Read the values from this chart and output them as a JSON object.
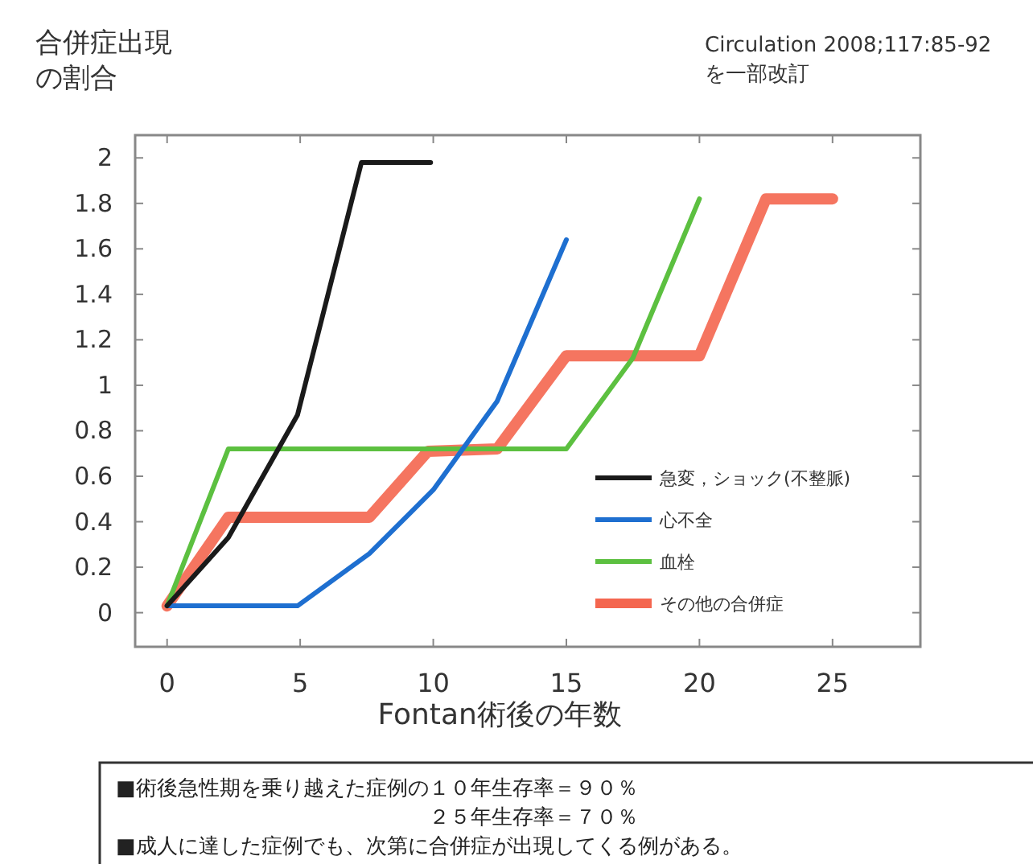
{
  "chart_data": {
    "type": "line",
    "ylabel": "合併症出現の割合",
    "xlabel": "Fontan術後の年数",
    "annotations": [
      "Circulation 2008;117:85-92\nを一部改訂",
      "■術後急性期を乗り越えた症例の１０年生存率＝９０％",
      "２５年生存率＝７０％",
      "■成人に達した症例でも、次第に合併症が出現してくる例がある。"
    ],
    "xlim": [
      -1.2,
      28.3
    ],
    "xticks": [
      0,
      5,
      10,
      15,
      20,
      25
    ],
    "ylim": [
      -0.15,
      2.1
    ],
    "yticks": [
      0,
      0.2,
      0.4,
      0.6,
      0.8,
      1,
      1.2,
      1.4,
      1.6,
      1.8,
      2
    ],
    "grid": false,
    "legend": "right",
    "marker": "none",
    "line_style": "solid",
    "series": [
      {
        "name": "その他の合併症",
        "color": "#f4664f",
        "x": [
          0,
          2.3,
          7.6,
          9.8,
          12.4,
          15,
          20,
          22.5,
          25
        ],
        "values": [
          0.03,
          0.42,
          0.42,
          0.71,
          0.72,
          1.13,
          1.13,
          1.82,
          1.82
        ]
      },
      {
        "name": "血栓",
        "color": "#5cc040",
        "x": [
          0,
          2.3,
          15,
          17.5,
          20
        ],
        "values": [
          0.03,
          0.72,
          0.72,
          1.12,
          1.82
        ]
      },
      {
        "name": "心不全",
        "color": "#1e6fd0",
        "x": [
          0,
          4.9,
          7.6,
          10,
          12.4,
          15
        ],
        "values": [
          0.03,
          0.03,
          0.26,
          0.54,
          0.93,
          1.64
        ]
      },
      {
        "name": "急変，ショック(不整脈)",
        "color": "#1a1a1a",
        "x": [
          0,
          2.3,
          4.9,
          7.3,
          9.9
        ],
        "values": [
          0.03,
          0.33,
          0.87,
          1.98,
          1.98
        ]
      }
    ]
  }
}
